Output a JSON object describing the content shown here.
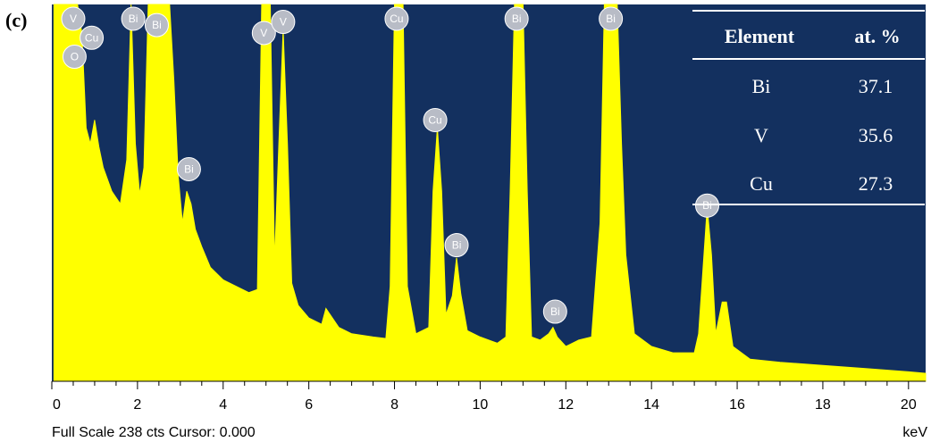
{
  "panel_label": "(c)",
  "status": {
    "full_scale": "Full Scale 238 cts Cursor: 0.000",
    "unit": "keV"
  },
  "colors": {
    "background": "#13305f",
    "spectrum": "#ffff00",
    "marker": "#b8bcc6",
    "table_line": "#ffffff"
  },
  "table": {
    "headers": [
      "Element",
      "at. %"
    ],
    "rows": [
      [
        "Bi",
        "37.1"
      ],
      [
        "V",
        "35.6"
      ],
      [
        "Cu",
        "27.3"
      ]
    ]
  },
  "chart_data": {
    "type": "area",
    "xlabel": "keV",
    "ylabel": "",
    "xlim": [
      0,
      20.4
    ],
    "ylim": [
      0,
      238
    ],
    "x_ticks": [
      0,
      2,
      4,
      6,
      8,
      10,
      12,
      14,
      16,
      18,
      20
    ],
    "series": [
      {
        "x": [
          0.05,
          0.1,
          0.2,
          0.3,
          0.4,
          0.5,
          0.6,
          0.7,
          0.8,
          0.9,
          1.0,
          1.1,
          1.2,
          1.4,
          1.6,
          1.75,
          1.85,
          1.95,
          2.05,
          2.15,
          2.25,
          2.35,
          2.45,
          2.55,
          2.65,
          2.75,
          2.85,
          2.95,
          3.05,
          3.15,
          3.25,
          3.35,
          3.5,
          3.7,
          4.0,
          4.3,
          4.6,
          4.8,
          4.9,
          5.0,
          5.1,
          5.2,
          5.3,
          5.4,
          5.5,
          5.6,
          5.75,
          6.0,
          6.3,
          6.4,
          6.5,
          6.7,
          7.0,
          7.5,
          7.8,
          7.9,
          8.0,
          8.1,
          8.2,
          8.3,
          8.5,
          8.8,
          8.9,
          9.0,
          9.1,
          9.2,
          9.35,
          9.45,
          9.55,
          9.7,
          10.0,
          10.4,
          10.6,
          10.7,
          10.8,
          10.9,
          11.0,
          11.1,
          11.2,
          11.4,
          11.6,
          11.7,
          11.8,
          12.0,
          12.3,
          12.6,
          12.8,
          12.9,
          13.0,
          13.1,
          13.2,
          13.3,
          13.4,
          13.6,
          14.0,
          14.5,
          15.0,
          15.1,
          15.2,
          15.3,
          15.4,
          15.5,
          15.65,
          15.75,
          15.9,
          16.3,
          17.0,
          18.0,
          19.0,
          20.0,
          20.4
        ],
        "values": [
          238,
          238,
          238,
          238,
          238,
          238,
          238,
          220,
          160,
          150,
          165,
          148,
          135,
          120,
          112,
          140,
          238,
          150,
          118,
          135,
          238,
          238,
          238,
          238,
          238,
          238,
          190,
          130,
          100,
          120,
          112,
          96,
          85,
          72,
          64,
          60,
          56,
          58,
          238,
          238,
          238,
          75,
          150,
          222,
          150,
          62,
          48,
          40,
          36,
          46,
          42,
          34,
          30,
          28,
          27,
          60,
          238,
          238,
          238,
          60,
          30,
          34,
          120,
          160,
          120,
          42,
          54,
          78,
          55,
          32,
          28,
          24,
          28,
          120,
          238,
          238,
          238,
          120,
          28,
          26,
          30,
          34,
          28,
          22,
          26,
          28,
          100,
          238,
          238,
          238,
          238,
          150,
          80,
          30,
          22,
          18,
          18,
          30,
          70,
          110,
          80,
          30,
          50,
          50,
          22,
          14,
          12,
          10,
          8,
          6,
          5
        ]
      }
    ],
    "peak_labels": [
      {
        "text": "V",
        "x": 0.5,
        "y": 238
      },
      {
        "text": "O",
        "x": 0.53,
        "y": 214
      },
      {
        "text": "Cu",
        "x": 0.93,
        "y": 226
      },
      {
        "text": "Bi",
        "x": 1.9,
        "y": 238
      },
      {
        "text": "Bi",
        "x": 2.45,
        "y": 234
      },
      {
        "text": "Bi",
        "x": 3.2,
        "y": 143
      },
      {
        "text": "V",
        "x": 4.95,
        "y": 229
      },
      {
        "text": "V",
        "x": 5.4,
        "y": 236
      },
      {
        "text": "Cu",
        "x": 8.05,
        "y": 238
      },
      {
        "text": "Cu",
        "x": 8.95,
        "y": 174
      },
      {
        "text": "Bi",
        "x": 9.45,
        "y": 95
      },
      {
        "text": "Bi",
        "x": 10.85,
        "y": 238
      },
      {
        "text": "Bi",
        "x": 11.75,
        "y": 53
      },
      {
        "text": "Bi",
        "x": 13.05,
        "y": 238
      },
      {
        "text": "Bi",
        "x": 15.3,
        "y": 120
      }
    ]
  }
}
